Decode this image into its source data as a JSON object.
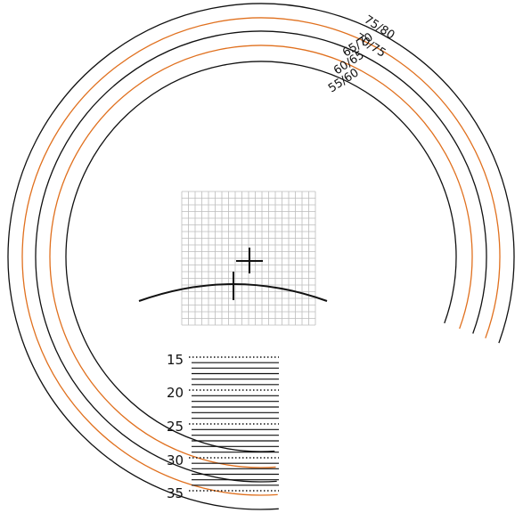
{
  "colors": {
    "background": "#ffffff",
    "black": "#111111",
    "orange": "#e0701e",
    "grid": "#bdbdbd"
  },
  "rings": [
    {
      "label": "75/80",
      "color": "#111111"
    },
    {
      "label": "70/75",
      "color": "#e0701e"
    },
    {
      "label": "65/70",
      "color": "#111111"
    },
    {
      "label": "60/65",
      "color": "#e0701e"
    },
    {
      "label": "55/60",
      "color": "#111111"
    }
  ],
  "scale": {
    "labels": [
      "15",
      "20",
      "25",
      "30",
      "35"
    ]
  },
  "icons": {
    "crosshair": "crosshair-icon",
    "curve_marker": "curve-tick-icon"
  }
}
